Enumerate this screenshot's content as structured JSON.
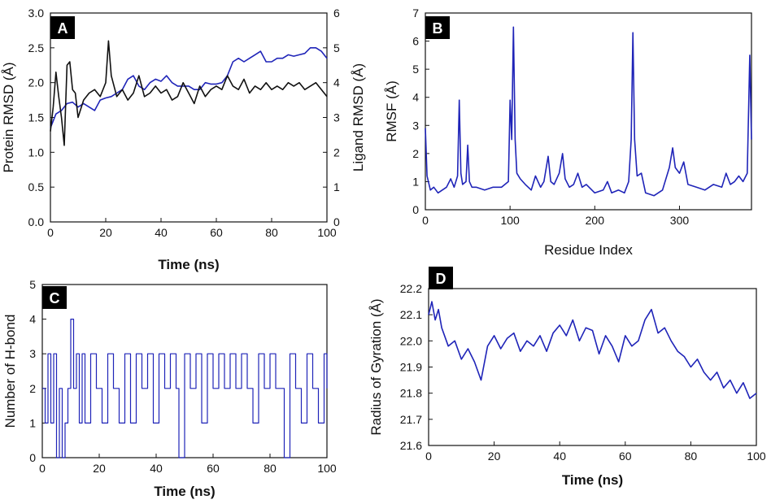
{
  "colors": {
    "blue": "#1f24b8",
    "black": "#111111",
    "badge": "#000000"
  },
  "chart_data": [
    {
      "panel": "A",
      "type": "line",
      "xlabel": "Time (ns)",
      "ylabel_left": "Protein RMSD (Å)",
      "ylabel_right": "Ligand RMSD (Å)",
      "xlim": [
        0,
        100
      ],
      "ylim_left": [
        0,
        3.0
      ],
      "ylim_right": [
        0,
        6
      ],
      "xticks": [
        "0",
        "20",
        "40",
        "60",
        "80",
        "100"
      ],
      "yticks_left": [
        "0.0",
        "0.5",
        "1.0",
        "1.5",
        "2.0",
        "2.5",
        "3.0"
      ],
      "yticks_right": [
        "0",
        "1",
        "2",
        "3",
        "4",
        "5",
        "6"
      ],
      "series": [
        {
          "name": "Protein RMSD",
          "axis": "left",
          "color": "#1f24b8",
          "x": [
            0,
            1,
            2,
            4,
            6,
            8,
            10,
            12,
            14,
            16,
            18,
            20,
            22,
            24,
            26,
            28,
            30,
            32,
            34,
            36,
            38,
            40,
            42,
            44,
            46,
            48,
            50,
            52,
            54,
            56,
            58,
            60,
            62,
            64,
            66,
            68,
            70,
            72,
            74,
            76,
            78,
            80,
            82,
            84,
            86,
            88,
            90,
            92,
            94,
            96,
            98,
            100
          ],
          "y": [
            1.35,
            1.45,
            1.55,
            1.6,
            1.7,
            1.72,
            1.65,
            1.7,
            1.65,
            1.6,
            1.75,
            1.78,
            1.8,
            1.85,
            1.9,
            2.05,
            2.1,
            1.95,
            1.9,
            2.0,
            2.05,
            2.02,
            2.1,
            2.0,
            1.95,
            1.95,
            1.95,
            1.9,
            1.9,
            2.0,
            1.98,
            1.98,
            2.0,
            2.1,
            2.3,
            2.35,
            2.3,
            2.35,
            2.4,
            2.45,
            2.3,
            2.3,
            2.35,
            2.35,
            2.4,
            2.38,
            2.4,
            2.42,
            2.5,
            2.5,
            2.45,
            2.35
          ]
        },
        {
          "name": "Ligand RMSD",
          "axis": "right",
          "color": "#111111",
          "x": [
            0,
            1,
            2,
            3,
            4,
            5,
            6,
            7,
            8,
            9,
            10,
            12,
            14,
            16,
            18,
            20,
            21,
            22,
            24,
            26,
            28,
            30,
            32,
            34,
            36,
            38,
            40,
            42,
            44,
            46,
            48,
            50,
            52,
            54,
            56,
            58,
            60,
            62,
            64,
            66,
            68,
            70,
            72,
            74,
            76,
            78,
            80,
            82,
            84,
            86,
            88,
            90,
            92,
            94,
            96,
            98,
            100
          ],
          "y": [
            2.6,
            3.3,
            4.3,
            3.6,
            3.0,
            2.2,
            4.5,
            4.6,
            3.8,
            3.7,
            3.0,
            3.5,
            3.7,
            3.8,
            3.6,
            4.0,
            5.2,
            4.2,
            3.6,
            3.8,
            3.5,
            3.7,
            4.2,
            3.6,
            3.7,
            3.9,
            3.7,
            3.8,
            3.5,
            3.6,
            4.0,
            3.7,
            3.4,
            3.9,
            3.6,
            3.8,
            3.9,
            3.8,
            4.2,
            3.9,
            3.8,
            4.1,
            3.7,
            3.9,
            3.8,
            4.0,
            3.8,
            3.9,
            3.8,
            4.0,
            3.9,
            4.0,
            3.8,
            3.9,
            4.0,
            3.8,
            3.6
          ]
        }
      ]
    },
    {
      "panel": "B",
      "type": "line",
      "xlabel": "Residue Index",
      "ylabel": "RMSF (Å)",
      "xlim": [
        0,
        385
      ],
      "ylim": [
        0,
        7
      ],
      "xticks": [
        "0",
        "100",
        "200",
        "300"
      ],
      "yticks": [
        "0",
        "1",
        "2",
        "3",
        "4",
        "5",
        "6",
        "7"
      ],
      "series": [
        {
          "name": "RMSF",
          "color": "#1f24b8",
          "x": [
            0,
            2,
            6,
            10,
            15,
            20,
            25,
            30,
            34,
            38,
            40,
            42,
            44,
            48,
            50,
            52,
            55,
            60,
            70,
            80,
            90,
            98,
            100,
            102,
            104,
            106,
            108,
            112,
            118,
            125,
            130,
            136,
            140,
            145,
            148,
            152,
            158,
            162,
            165,
            170,
            175,
            180,
            185,
            190,
            200,
            210,
            215,
            220,
            228,
            235,
            240,
            243,
            245,
            247,
            250,
            255,
            260,
            270,
            280,
            288,
            292,
            295,
            300,
            305,
            310,
            320,
            330,
            340,
            350,
            355,
            360,
            365,
            370,
            375,
            380,
            383,
            385
          ],
          "y": [
            2.9,
            1.2,
            0.7,
            0.8,
            0.6,
            0.7,
            0.8,
            1.1,
            0.8,
            1.2,
            3.9,
            1.3,
            0.9,
            1.0,
            2.3,
            1.0,
            0.8,
            0.8,
            0.7,
            0.8,
            0.8,
            1.0,
            3.9,
            2.5,
            6.5,
            2.5,
            1.3,
            1.1,
            0.9,
            0.7,
            1.2,
            0.8,
            1.0,
            1.9,
            1.0,
            0.9,
            1.3,
            2.0,
            1.1,
            0.8,
            0.9,
            1.3,
            0.8,
            0.9,
            0.6,
            0.7,
            1.0,
            0.6,
            0.7,
            0.6,
            1.0,
            2.5,
            6.3,
            2.5,
            1.2,
            1.3,
            0.6,
            0.5,
            0.7,
            1.5,
            2.2,
            1.5,
            1.3,
            1.7,
            0.9,
            0.8,
            0.7,
            0.9,
            0.8,
            1.3,
            0.9,
            1.0,
            1.2,
            1.0,
            1.3,
            5.5,
            2.5
          ]
        }
      ]
    },
    {
      "panel": "C",
      "type": "line",
      "xlabel": "Time (ns)",
      "ylabel": "Number of H-bond",
      "xlim": [
        0,
        100
      ],
      "ylim": [
        0,
        5
      ],
      "xticks": [
        "0",
        "20",
        "40",
        "60",
        "80",
        "100"
      ],
      "yticks": [
        "0",
        "1",
        "2",
        "3",
        "4",
        "5"
      ],
      "series": [
        {
          "name": "H-bonds",
          "color": "#1f24b8",
          "x": [
            0,
            1,
            2,
            3,
            4,
            5,
            6,
            7,
            8,
            9,
            10,
            11,
            12,
            13,
            14,
            15,
            17,
            19,
            21,
            23,
            25,
            27,
            29,
            31,
            33,
            35,
            37,
            39,
            41,
            43,
            45,
            47,
            48,
            50,
            52,
            54,
            56,
            58,
            60,
            62,
            64,
            66,
            68,
            70,
            72,
            74,
            76,
            78,
            80,
            82,
            84,
            85,
            87,
            89,
            91,
            93,
            95,
            97,
            99,
            100
          ],
          "y": [
            2,
            1,
            3,
            1,
            3,
            0,
            2,
            0,
            1,
            2,
            4,
            2,
            3,
            1,
            3,
            1,
            3,
            2,
            1,
            3,
            2,
            1,
            3,
            1,
            3,
            2,
            3,
            1,
            3,
            2,
            3,
            2,
            0,
            3,
            2,
            3,
            1,
            3,
            2,
            3,
            2,
            3,
            2,
            3,
            2,
            1,
            3,
            2,
            3,
            2,
            2,
            0,
            3,
            2,
            1,
            3,
            2,
            1,
            3,
            2
          ]
        }
      ]
    },
    {
      "panel": "D",
      "type": "line",
      "xlabel": "Time (ns)",
      "ylabel": "Radius of Gyration (Å)",
      "xlim": [
        0,
        100
      ],
      "ylim": [
        21.6,
        22.2
      ],
      "xticks": [
        "0",
        "20",
        "40",
        "60",
        "80",
        "100"
      ],
      "yticks": [
        "21.6",
        "21.7",
        "21.8",
        "21.9",
        "22.0",
        "22.1",
        "22.2"
      ],
      "series": [
        {
          "name": "Rg",
          "color": "#1f24b8",
          "x": [
            0,
            1,
            2,
            3,
            4,
            6,
            8,
            10,
            12,
            14,
            16,
            18,
            20,
            22,
            24,
            26,
            28,
            30,
            32,
            34,
            36,
            38,
            40,
            42,
            44,
            46,
            48,
            50,
            52,
            54,
            56,
            58,
            60,
            62,
            64,
            66,
            68,
            70,
            72,
            74,
            76,
            78,
            80,
            82,
            84,
            86,
            88,
            90,
            92,
            94,
            96,
            98,
            100
          ],
          "y": [
            22.1,
            22.15,
            22.08,
            22.12,
            22.05,
            21.98,
            22.0,
            21.93,
            21.97,
            21.92,
            21.85,
            21.98,
            22.02,
            21.97,
            22.01,
            22.03,
            21.96,
            22.0,
            21.98,
            22.02,
            21.96,
            22.03,
            22.06,
            22.02,
            22.08,
            22.0,
            22.05,
            22.04,
            21.95,
            22.02,
            21.98,
            21.92,
            22.02,
            21.98,
            22.0,
            22.08,
            22.12,
            22.03,
            22.05,
            22.0,
            21.96,
            21.94,
            21.9,
            21.93,
            21.88,
            21.85,
            21.88,
            21.82,
            21.85,
            21.8,
            21.84,
            21.78,
            21.8
          ]
        }
      ]
    }
  ]
}
